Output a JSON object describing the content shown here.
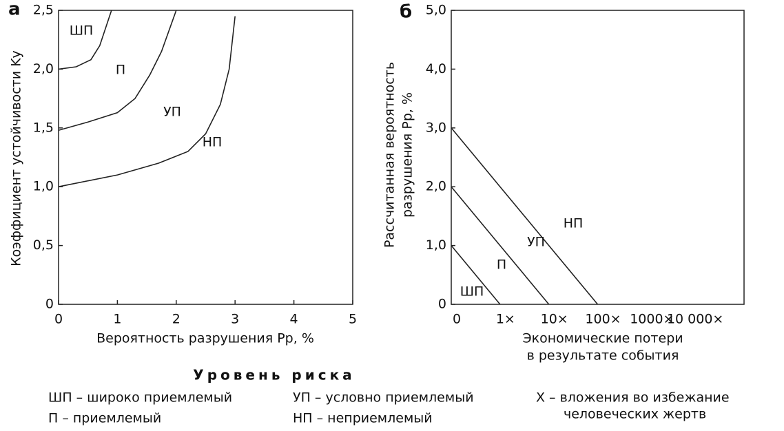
{
  "chart_data": [
    {
      "type": "line",
      "panel": "а",
      "xlabel": "Вероятность разрушения Pр, %",
      "ylabel": "Коэффициент устойчивости Kу",
      "xlim": [
        0,
        5
      ],
      "ylim": [
        0,
        2.5
      ],
      "xticks": [
        0,
        1,
        2,
        3,
        4,
        5
      ],
      "yticks": [
        0,
        {
          "value": 0.5,
          "label": "0,5"
        },
        {
          "value": 1,
          "label": "1,0"
        },
        {
          "value": 1.5,
          "label": "1,5"
        },
        {
          "value": 2,
          "label": "2,0"
        },
        {
          "value": 2.5,
          "label": "2,5"
        }
      ],
      "series": [
        {
          "color": "#222222",
          "x": [
            0,
            0.3,
            0.55,
            0.7,
            0.8,
            0.9
          ],
          "values": [
            2.0,
            2.02,
            2.08,
            2.2,
            2.35,
            2.5
          ]
        },
        {
          "color": "#222222",
          "x": [
            0,
            0.5,
            1.0,
            1.3,
            1.55,
            1.75,
            2.0
          ],
          "values": [
            1.48,
            1.55,
            1.63,
            1.75,
            1.95,
            2.15,
            2.5
          ]
        },
        {
          "color": "#222222",
          "x": [
            0,
            1.0,
            1.7,
            2.2,
            2.5,
            2.75,
            2.9,
            3.0
          ],
          "values": [
            1.0,
            1.1,
            1.2,
            1.3,
            1.45,
            1.7,
            2.0,
            2.45
          ]
        }
      ],
      "annotations": [
        "ШП",
        "П",
        "УП",
        "НП"
      ]
    },
    {
      "type": "line",
      "panel": "б",
      "xlabel": [
        "Экономические потери",
        "в результате события"
      ],
      "ylabel": [
        "Рассчитанная вероятность",
        "разрушения Pр, %"
      ],
      "categories": [
        "0",
        "1×",
        "10×",
        "100×",
        "1000×",
        "10 000×"
      ],
      "ylim": [
        0,
        5
      ],
      "yticks": [
        0,
        {
          "value": 1,
          "label": "1,0"
        },
        {
          "value": 2,
          "label": "2,0"
        },
        {
          "value": 3,
          "label": "3,0"
        },
        {
          "value": 4,
          "label": "4,0"
        },
        {
          "value": 5,
          "label": "5,0"
        }
      ],
      "series": [
        {
          "color": "#222222",
          "values": [
            1,
            0,
            null,
            null,
            null,
            null
          ]
        },
        {
          "color": "#222222",
          "values": [
            2,
            1,
            0,
            null,
            null,
            null
          ]
        },
        {
          "color": "#222222",
          "values": [
            3,
            2,
            1,
            0,
            null,
            null
          ]
        }
      ],
      "annotations": [
        "ШП",
        "П",
        "УП",
        "НП"
      ]
    }
  ],
  "risk_legend": {
    "title": "Уровень риска",
    "items": [
      "ШП – широко приемлемый",
      "П – приемлемый",
      "УП – условно приемлемый",
      "НП – неприемлемый",
      "Х – вложения во избежание",
      "человеческих жертв"
    ]
  }
}
